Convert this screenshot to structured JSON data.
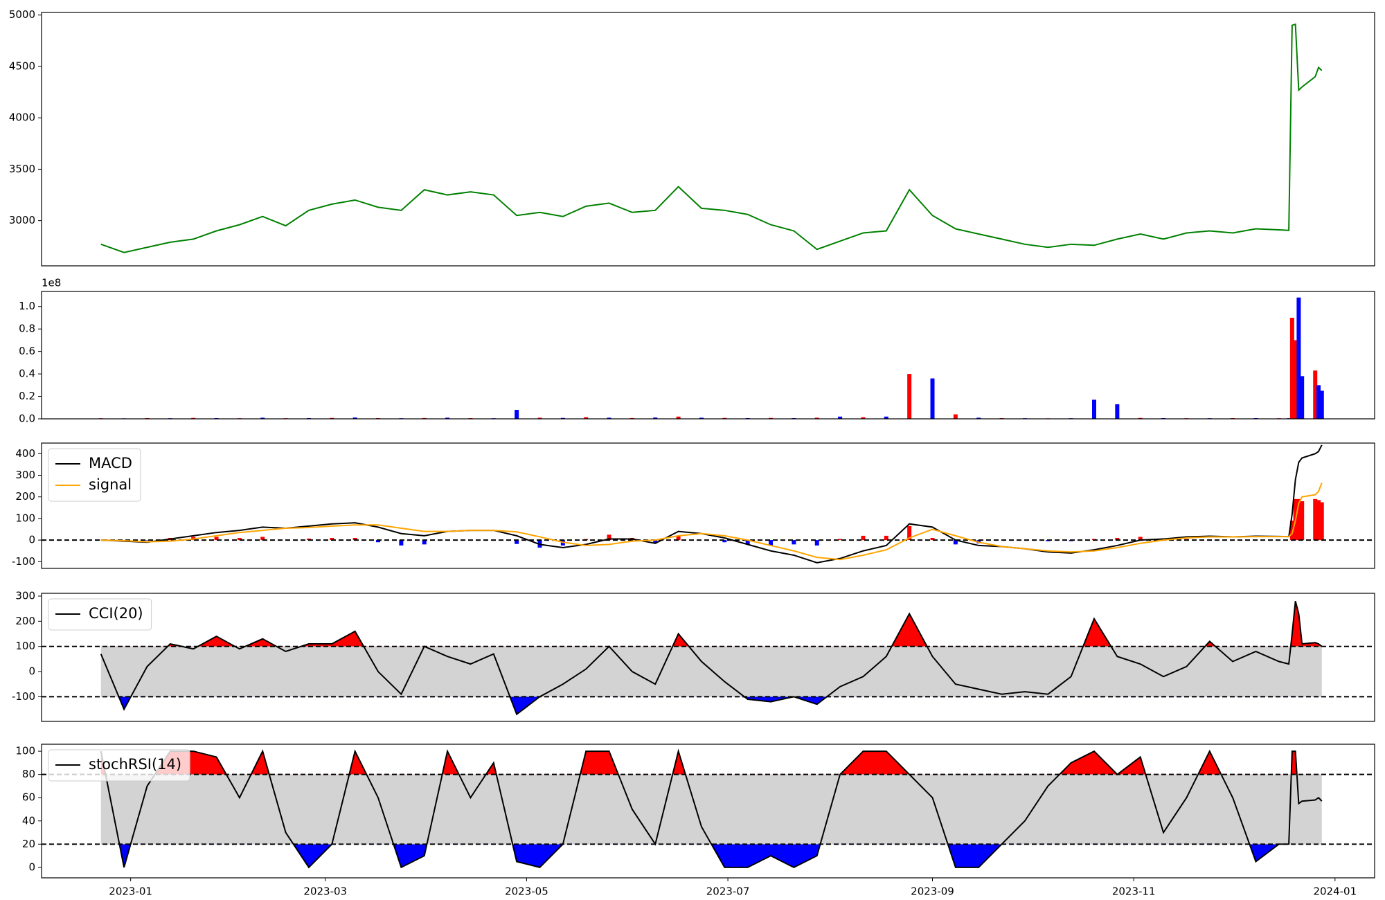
{
  "chart_data": [
    {
      "type": "line",
      "x": [
        "2022-12-23",
        "2022-12-30",
        "2023-01-06",
        "2023-01-13",
        "2023-01-20",
        "2023-01-27",
        "2023-02-03",
        "2023-02-10",
        "2023-02-17",
        "2023-02-24",
        "2023-03-03",
        "2023-03-10",
        "2023-03-17",
        "2023-03-24",
        "2023-03-31",
        "2023-04-07",
        "2023-04-14",
        "2023-04-21",
        "2023-04-28",
        "2023-05-05",
        "2023-05-12",
        "2023-05-19",
        "2023-05-26",
        "2023-06-02",
        "2023-06-09",
        "2023-06-16",
        "2023-06-23",
        "2023-06-30",
        "2023-07-07",
        "2023-07-14",
        "2023-07-21",
        "2023-07-28",
        "2023-08-04",
        "2023-08-11",
        "2023-08-18",
        "2023-08-25",
        "2023-09-01",
        "2023-09-08",
        "2023-09-15",
        "2023-09-22",
        "2023-09-29",
        "2023-10-06",
        "2023-10-13",
        "2023-10-20",
        "2023-10-27",
        "2023-11-03",
        "2023-11-10",
        "2023-11-17",
        "2023-11-24",
        "2023-12-01",
        "2023-12-08",
        "2023-12-15",
        "2023-12-18",
        "2023-12-19",
        "2023-12-20",
        "2023-12-21",
        "2023-12-22",
        "2023-12-26",
        "2023-12-27",
        "2023-12-28"
      ],
      "series": [
        {
          "color": "#008000",
          "values": [
            2770,
            2690,
            2740,
            2790,
            2820,
            2900,
            2960,
            3040,
            2950,
            3100,
            3160,
            3200,
            3130,
            3100,
            3300,
            3250,
            3280,
            3250,
            3050,
            3080,
            3040,
            3140,
            3170,
            3080,
            3100,
            3330,
            3120,
            3100,
            3060,
            2960,
            2900,
            2720,
            2800,
            2880,
            2900,
            3300,
            3050,
            2920,
            2870,
            2820,
            2770,
            2740,
            2770,
            2760,
            2820,
            2870,
            2820,
            2880,
            2900,
            2880,
            2920,
            2910,
            2905,
            4900,
            4910,
            4270,
            4300,
            4400,
            4490,
            4460
          ]
        }
      ],
      "xlim": [
        "2022-12-05",
        "2024-01-13"
      ],
      "ylim": [
        2560,
        5025
      ],
      "yticks": [
        3000,
        3500,
        4000,
        4500,
        5000
      ]
    },
    {
      "type": "bar",
      "x": [
        "2022-12-23",
        "2022-12-30",
        "2023-01-06",
        "2023-01-13",
        "2023-01-20",
        "2023-01-27",
        "2023-02-03",
        "2023-02-10",
        "2023-02-17",
        "2023-02-24",
        "2023-03-03",
        "2023-03-10",
        "2023-03-17",
        "2023-03-24",
        "2023-03-31",
        "2023-04-07",
        "2023-04-14",
        "2023-04-21",
        "2023-04-28",
        "2023-05-05",
        "2023-05-12",
        "2023-05-19",
        "2023-05-26",
        "2023-06-02",
        "2023-06-09",
        "2023-06-16",
        "2023-06-23",
        "2023-06-30",
        "2023-07-07",
        "2023-07-14",
        "2023-07-21",
        "2023-07-28",
        "2023-08-04",
        "2023-08-11",
        "2023-08-18",
        "2023-08-25",
        "2023-09-01",
        "2023-09-08",
        "2023-09-15",
        "2023-09-22",
        "2023-09-29",
        "2023-10-06",
        "2023-10-13",
        "2023-10-20",
        "2023-10-27",
        "2023-11-03",
        "2023-11-10",
        "2023-11-17",
        "2023-11-24",
        "2023-12-01",
        "2023-12-08",
        "2023-12-15",
        "2023-12-18",
        "2023-12-19",
        "2023-12-20",
        "2023-12-21",
        "2023-12-22",
        "2023-12-26",
        "2023-12-27",
        "2023-12-28"
      ],
      "values": [
        0.005,
        0.004,
        0.006,
        0.005,
        0.008,
        0.006,
        0.005,
        0.01,
        0.005,
        0.006,
        0.008,
        0.012,
        0.006,
        0.005,
        0.007,
        0.01,
        0.006,
        0.005,
        0.08,
        0.01,
        0.008,
        0.015,
        0.01,
        0.007,
        0.012,
        0.02,
        0.01,
        0.008,
        0.006,
        0.008,
        0.006,
        0.01,
        0.02,
        0.015,
        0.02,
        0.4,
        0.36,
        0.04,
        0.01,
        0.006,
        0.005,
        0.004,
        0.005,
        0.17,
        0.13,
        0.008,
        0.006,
        0.005,
        0.005,
        0.006,
        0.006,
        0.005,
        0.005,
        0.9,
        0.7,
        1.08,
        0.38,
        0.43,
        0.3,
        0.25
      ],
      "colors": [
        "red",
        "blue",
        "red",
        "blue",
        "red",
        "blue",
        "red",
        "blue",
        "red",
        "blue",
        "red",
        "blue",
        "red",
        "blue",
        "red",
        "blue",
        "red",
        "blue",
        "blue",
        "red",
        "blue",
        "red",
        "blue",
        "red",
        "blue",
        "red",
        "blue",
        "red",
        "blue",
        "red",
        "blue",
        "red",
        "blue",
        "red",
        "blue",
        "red",
        "blue",
        "red",
        "blue",
        "red",
        "blue",
        "red",
        "blue",
        "blue",
        "blue",
        "red",
        "blue",
        "red",
        "blue",
        "red",
        "blue",
        "red",
        "blue",
        "red",
        "red",
        "blue",
        "blue",
        "red",
        "blue",
        "blue"
      ],
      "offset_text": "1e8",
      "xlim": [
        "2022-12-05",
        "2024-01-13"
      ],
      "ylim": [
        0,
        1.134
      ],
      "yticks": [
        {
          "value": 0,
          "label": "0.0"
        },
        {
          "value": 0.2,
          "label": "0.2"
        },
        {
          "value": 0.4,
          "label": "0.4"
        },
        {
          "value": 0.6,
          "label": "0.6"
        },
        {
          "value": 0.8,
          "label": "0.8"
        },
        {
          "value": 1,
          "label": "1.0"
        }
      ]
    },
    {
      "type": "line",
      "x": [
        "2022-12-23",
        "2022-12-30",
        "2023-01-06",
        "2023-01-13",
        "2023-01-20",
        "2023-01-27",
        "2023-02-03",
        "2023-02-10",
        "2023-02-17",
        "2023-02-24",
        "2023-03-03",
        "2023-03-10",
        "2023-03-17",
        "2023-03-24",
        "2023-03-31",
        "2023-04-07",
        "2023-04-14",
        "2023-04-21",
        "2023-04-28",
        "2023-05-05",
        "2023-05-12",
        "2023-05-19",
        "2023-05-26",
        "2023-06-02",
        "2023-06-09",
        "2023-06-16",
        "2023-06-23",
        "2023-06-30",
        "2023-07-07",
        "2023-07-14",
        "2023-07-21",
        "2023-07-28",
        "2023-08-04",
        "2023-08-11",
        "2023-08-18",
        "2023-08-25",
        "2023-09-01",
        "2023-09-08",
        "2023-09-15",
        "2023-09-22",
        "2023-09-29",
        "2023-10-06",
        "2023-10-13",
        "2023-10-20",
        "2023-10-27",
        "2023-11-03",
        "2023-11-10",
        "2023-11-17",
        "2023-11-24",
        "2023-12-01",
        "2023-12-08",
        "2023-12-15",
        "2023-12-18",
        "2023-12-19",
        "2023-12-20",
        "2023-12-21",
        "2023-12-22",
        "2023-12-26",
        "2023-12-27",
        "2023-12-28"
      ],
      "histogram": {
        "positive_color": "red",
        "negative_color": "blue",
        "values": [
          0,
          -2,
          -2,
          10,
          15,
          15,
          10,
          15,
          0,
          7,
          10,
          10,
          -10,
          -25,
          -20,
          0,
          0,
          0,
          -18,
          -35,
          -25,
          5,
          25,
          10,
          -15,
          20,
          0,
          -10,
          -20,
          -25,
          -20,
          -25,
          5,
          20,
          20,
          65,
          10,
          -20,
          -15,
          0,
          0,
          -5,
          -5,
          5,
          10,
          15,
          5,
          5,
          3,
          0,
          2,
          1,
          0,
          90,
          190,
          190,
          180,
          190,
          185,
          175
        ]
      },
      "series": [
        {
          "name": "MACD",
          "color": "#000000",
          "values": [
            0,
            -5,
            -10,
            5,
            20,
            35,
            45,
            60,
            55,
            65,
            75,
            80,
            60,
            30,
            20,
            40,
            45,
            45,
            20,
            -20,
            -35,
            -20,
            5,
            5,
            -15,
            40,
            30,
            10,
            -20,
            -50,
            -70,
            -105,
            -85,
            -50,
            -25,
            75,
            60,
            0,
            -25,
            -30,
            -40,
            -55,
            -60,
            -45,
            -25,
            0,
            5,
            15,
            18,
            15,
            18,
            17,
            16,
            120,
            280,
            360,
            380,
            400,
            410,
            440
          ]
        },
        {
          "name": "signal",
          "color": "#ffa500",
          "values": [
            0,
            -3,
            -8,
            -5,
            5,
            20,
            35,
            45,
            55,
            58,
            65,
            70,
            70,
            55,
            40,
            40,
            45,
            45,
            38,
            15,
            -10,
            -25,
            -20,
            -5,
            0,
            20,
            30,
            20,
            0,
            -25,
            -50,
            -80,
            -90,
            -70,
            -45,
            10,
            50,
            20,
            -10,
            -30,
            -40,
            -50,
            -55,
            -50,
            -35,
            -15,
            0,
            10,
            15,
            15,
            16,
            16,
            16,
            30,
            90,
            170,
            200,
            210,
            225,
            265
          ]
        }
      ],
      "hlines": [
        0
      ],
      "legend": "upper left",
      "xlim": [
        "2022-12-05",
        "2024-01-13"
      ],
      "ylim": [
        -131,
        449
      ],
      "yticks": [
        -100,
        0,
        100,
        200,
        300,
        400
      ]
    },
    {
      "type": "line",
      "x": [
        "2022-12-23",
        "2022-12-30",
        "2023-01-06",
        "2023-01-13",
        "2023-01-20",
        "2023-01-27",
        "2023-02-03",
        "2023-02-10",
        "2023-02-17",
        "2023-02-24",
        "2023-03-03",
        "2023-03-10",
        "2023-03-17",
        "2023-03-24",
        "2023-03-31",
        "2023-04-07",
        "2023-04-14",
        "2023-04-21",
        "2023-04-28",
        "2023-05-05",
        "2023-05-12",
        "2023-05-19",
        "2023-05-26",
        "2023-06-02",
        "2023-06-09",
        "2023-06-16",
        "2023-06-23",
        "2023-06-30",
        "2023-07-07",
        "2023-07-14",
        "2023-07-21",
        "2023-07-28",
        "2023-08-04",
        "2023-08-11",
        "2023-08-18",
        "2023-08-25",
        "2023-09-01",
        "2023-09-08",
        "2023-09-15",
        "2023-09-22",
        "2023-09-29",
        "2023-10-06",
        "2023-10-13",
        "2023-10-20",
        "2023-10-27",
        "2023-11-03",
        "2023-11-10",
        "2023-11-17",
        "2023-11-24",
        "2023-12-01",
        "2023-12-08",
        "2023-12-15",
        "2023-12-18",
        "2023-12-19",
        "2023-12-20",
        "2023-12-21",
        "2023-12-22",
        "2023-12-26",
        "2023-12-27",
        "2023-12-28"
      ],
      "series": [
        {
          "name": "CCI(20)",
          "color": "#000000",
          "values": [
            70,
            -150,
            20,
            110,
            90,
            140,
            90,
            130,
            80,
            110,
            110,
            160,
            0,
            -90,
            100,
            60,
            30,
            70,
            -170,
            -100,
            -50,
            10,
            100,
            0,
            -50,
            150,
            40,
            -40,
            -110,
            -120,
            -100,
            -130,
            -60,
            -20,
            60,
            230,
            60,
            -50,
            -70,
            -90,
            -80,
            -90,
            -20,
            210,
            60,
            30,
            -20,
            20,
            120,
            40,
            80,
            40,
            30,
            150,
            280,
            230,
            110,
            115,
            110,
            100
          ]
        }
      ],
      "hlines": [
        -100,
        100
      ],
      "fill_colors": {
        "above": "red",
        "between": "lightgray",
        "below": "blue"
      },
      "legend": "upper left",
      "xlim": [
        "2022-12-05",
        "2024-01-13"
      ],
      "ylim": [
        -198,
        311
      ],
      "yticks": [
        -100,
        0,
        100,
        200,
        300
      ]
    },
    {
      "type": "line",
      "x": [
        "2022-12-23",
        "2022-12-30",
        "2023-01-06",
        "2023-01-13",
        "2023-01-20",
        "2023-01-27",
        "2023-02-03",
        "2023-02-10",
        "2023-02-17",
        "2023-02-24",
        "2023-03-03",
        "2023-03-10",
        "2023-03-17",
        "2023-03-24",
        "2023-03-31",
        "2023-04-07",
        "2023-04-14",
        "2023-04-21",
        "2023-04-28",
        "2023-05-05",
        "2023-05-12",
        "2023-05-19",
        "2023-05-26",
        "2023-06-02",
        "2023-06-09",
        "2023-06-16",
        "2023-06-23",
        "2023-06-30",
        "2023-07-07",
        "2023-07-14",
        "2023-07-21",
        "2023-07-28",
        "2023-08-04",
        "2023-08-11",
        "2023-08-18",
        "2023-08-25",
        "2023-09-01",
        "2023-09-08",
        "2023-09-15",
        "2023-09-22",
        "2023-09-29",
        "2023-10-06",
        "2023-10-13",
        "2023-10-20",
        "2023-10-27",
        "2023-11-03",
        "2023-11-10",
        "2023-11-17",
        "2023-11-24",
        "2023-12-01",
        "2023-12-08",
        "2023-12-15",
        "2023-12-18",
        "2023-12-19",
        "2023-12-20",
        "2023-12-21",
        "2023-12-22",
        "2023-12-26",
        "2023-12-27",
        "2023-12-28"
      ],
      "series": [
        {
          "name": "stochRSI(14)",
          "color": "#000000",
          "values": [
            100,
            0,
            70,
            100,
            100,
            95,
            60,
            100,
            30,
            0,
            20,
            100,
            60,
            0,
            10,
            100,
            60,
            90,
            5,
            0,
            20,
            100,
            100,
            50,
            20,
            100,
            35,
            0,
            0,
            10,
            0,
            10,
            80,
            100,
            100,
            80,
            60,
            0,
            0,
            20,
            40,
            70,
            90,
            100,
            80,
            95,
            30,
            60,
            100,
            60,
            5,
            20,
            20,
            100,
            100,
            55,
            57,
            58,
            60,
            57
          ]
        }
      ],
      "hlines": [
        20,
        80
      ],
      "fill_colors": {
        "above": "red",
        "between": "lightgray",
        "below": "blue"
      },
      "legend": "upper left",
      "xlim": [
        "2022-12-05",
        "2024-01-13"
      ],
      "ylim": [
        -9,
        106
      ],
      "yticks": [
        0,
        20,
        40,
        60,
        80,
        100
      ],
      "xticks": [
        {
          "value": "2023-01-01",
          "label": "2023-01"
        },
        {
          "value": "2023-03-01",
          "label": "2023-03"
        },
        {
          "value": "2023-05-01",
          "label": "2023-05"
        },
        {
          "value": "2023-07-01",
          "label": "2023-07"
        },
        {
          "value": "2023-09-01",
          "label": "2023-09"
        },
        {
          "value": "2023-11-01",
          "label": "2023-11"
        },
        {
          "value": "2024-01-01",
          "label": "2024-01"
        }
      ]
    }
  ]
}
